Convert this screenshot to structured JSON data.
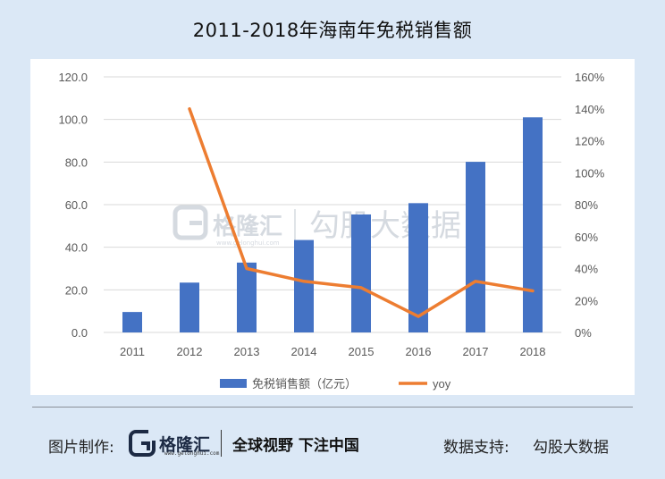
{
  "title": "2011-2018年海南年免税销售额",
  "watermark": {
    "brand": "格隆汇",
    "url": "www.gelonghui.com",
    "provider": "勾股大数据"
  },
  "footer": {
    "made_by_label": "图片制作:",
    "brand_name": "格隆汇",
    "brand_url": "www.gelonghui.com",
    "slogan": "全球视野 下注中国",
    "data_support_label": "数据支持:",
    "data_support_value": "勾股大数据"
  },
  "colors": {
    "background": "#dbe8f6",
    "plot_background": "#ffffff",
    "bar": "#4472c4",
    "line": "#ed7d31",
    "grid": "#d9d9d9"
  },
  "chart_data": {
    "type": "bar",
    "title": "2011-2018年海南年免税销售额",
    "categories": [
      "2011",
      "2012",
      "2013",
      "2014",
      "2015",
      "2016",
      "2017",
      "2018"
    ],
    "series": [
      {
        "name": "免税销售额（亿元）",
        "type": "bar",
        "axis": "left",
        "values": [
          9.6,
          23.4,
          32.8,
          43.4,
          55.4,
          60.7,
          80.1,
          101.0
        ]
      },
      {
        "name": "yoy",
        "type": "line",
        "axis": "right",
        "values": [
          null,
          1.4,
          0.4,
          0.32,
          0.28,
          0.1,
          0.32,
          0.26
        ]
      }
    ],
    "y_left": {
      "min": 0,
      "max": 120,
      "step": 20,
      "tick_labels": [
        "0.0",
        "20.0",
        "40.0",
        "60.0",
        "80.0",
        "100.0",
        "120.0"
      ]
    },
    "y_right": {
      "min": 0,
      "max": 1.6,
      "step": 0.2,
      "tick_labels": [
        "0%",
        "20%",
        "40%",
        "60%",
        "80%",
        "100%",
        "120%",
        "140%",
        "160%"
      ]
    },
    "grid": true,
    "legend_position": "bottom"
  }
}
